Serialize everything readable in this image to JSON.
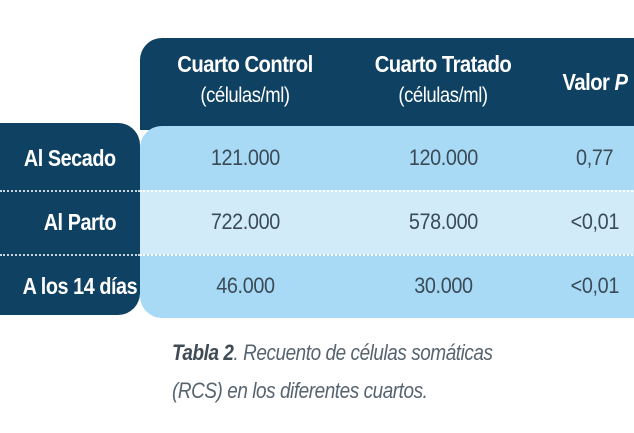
{
  "table": {
    "headers": [
      {
        "title": "Cuarto Control",
        "unit": "(células/ml)"
      },
      {
        "title": "Cuarto Tratado",
        "unit": "(células/ml)"
      },
      {
        "title": "Valor ",
        "title_italic": "P"
      }
    ],
    "rows": [
      {
        "label": "Al Secado",
        "values": [
          "121.000",
          "120.000",
          "0,77"
        ]
      },
      {
        "label": "Al Parto",
        "values": [
          "722.000",
          "578.000",
          "<0,01"
        ]
      },
      {
        "label": "A los 14 días",
        "values": [
          "46.000",
          "30.000",
          "<0,01"
        ]
      }
    ]
  },
  "caption": {
    "label": "Tabla 2",
    "text_line1": ". Recuento de células somáticas",
    "text_line2": "(RCS) en los diferentes cuartos."
  },
  "colors": {
    "header_navy": "#0f4163",
    "row_light_blue": "#a9daf5",
    "row_pale_blue": "#d1ebf9",
    "cell_text": "#3a4a57",
    "caption_text": "#566470"
  }
}
